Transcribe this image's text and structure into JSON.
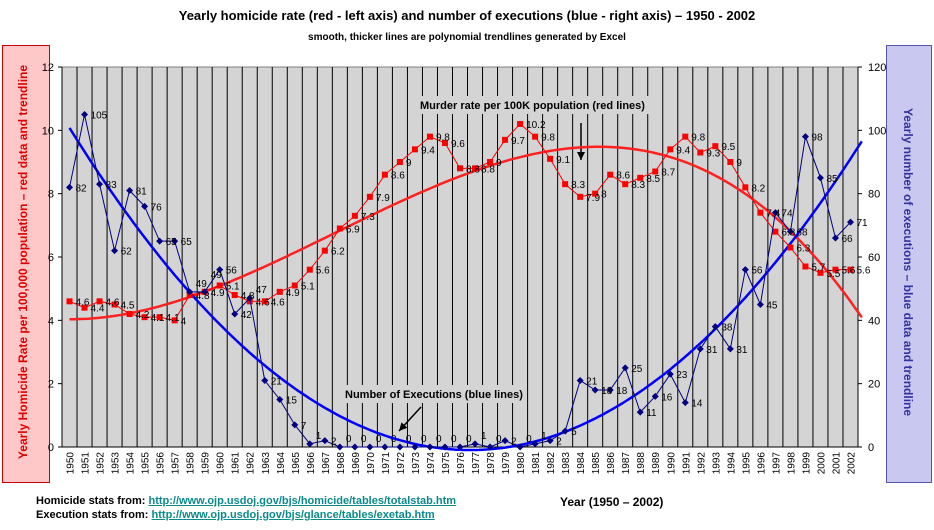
{
  "chart_data": {
    "type": "line",
    "title": "Yearly homicide rate (red - left axis) and number of executions (blue - right axis) – 1950 - 2002",
    "subtitle": "smooth, thicker lines are polynomial trendlines generated by Excel",
    "xlabel": "Year (1950 – 2002)",
    "ylabel": "Yearly Homicide Rate per 100,000 population – red data and trendline",
    "y2label": "Yearly number of executions – blue data and trendline",
    "ylim": [
      0,
      12
    ],
    "y2lim": [
      0,
      120
    ],
    "yticks": [
      0,
      2,
      4,
      6,
      8,
      10,
      12
    ],
    "y2ticks": [
      0,
      20,
      40,
      60,
      80,
      100,
      120
    ],
    "grid": "vertical",
    "x": [
      1950,
      1951,
      1952,
      1953,
      1954,
      1955,
      1956,
      1957,
      1958,
      1959,
      1960,
      1961,
      1962,
      1963,
      1964,
      1965,
      1966,
      1967,
      1968,
      1969,
      1970,
      1971,
      1972,
      1973,
      1974,
      1975,
      1976,
      1977,
      1978,
      1979,
      1980,
      1981,
      1982,
      1983,
      1984,
      1985,
      1986,
      1987,
      1988,
      1989,
      1990,
      1991,
      1992,
      1993,
      1994,
      1995,
      1996,
      1997,
      1998,
      1999,
      2000,
      2001,
      2002
    ],
    "series": [
      {
        "axis": "left",
        "color": "#ff0000",
        "trendline": "polynomial",
        "values": [
          4.6,
          4.4,
          4.6,
          4.5,
          4.2,
          4.1,
          4.1,
          4.0,
          4.8,
          4.9,
          5.1,
          4.8,
          4.6,
          4.6,
          4.9,
          5.1,
          5.6,
          6.2,
          6.9,
          7.3,
          7.9,
          8.6,
          9.0,
          9.4,
          9.8,
          9.6,
          8.8,
          8.8,
          9.0,
          9.7,
          10.2,
          9.8,
          9.1,
          8.3,
          7.9,
          8.0,
          8.6,
          8.3,
          8.5,
          8.7,
          9.4,
          9.8,
          9.3,
          9.5,
          9.0,
          8.2,
          7.4,
          6.8,
          6.3,
          5.7,
          5.5,
          5.6,
          5.6
        ]
      },
      {
        "axis": "right",
        "color": "#000080",
        "trend_color": "#0000ff",
        "trendline": "polynomial",
        "values": [
          82,
          105,
          83,
          62,
          81,
          76,
          65,
          65,
          49,
          49,
          56,
          42,
          47,
          21,
          15,
          7,
          1,
          2,
          0,
          0,
          0,
          0,
          0,
          0,
          0,
          0,
          0,
          1,
          0,
          2,
          0,
          1,
          2,
          5,
          21,
          18,
          18,
          25,
          11,
          16,
          23,
          14,
          31,
          38,
          31,
          56,
          45,
          74,
          68,
          98,
          85,
          66,
          71
        ]
      }
    ],
    "annotations": [
      {
        "text": "Murder rate per 100K population (red lines)"
      },
      {
        "text": "Number of Executions (blue lines)"
      }
    ]
  },
  "footer": {
    "homicide_label": "Homicide stats from:",
    "homicide_link": "http://www.ojp.usdoj.gov/bjs/homicide/tables/totalstab.htm",
    "execution_label": "Execution stats from:",
    "execution_link": "http://www.ojp.usdoj.gov/bjs/glance/tables/exetab.htm"
  }
}
